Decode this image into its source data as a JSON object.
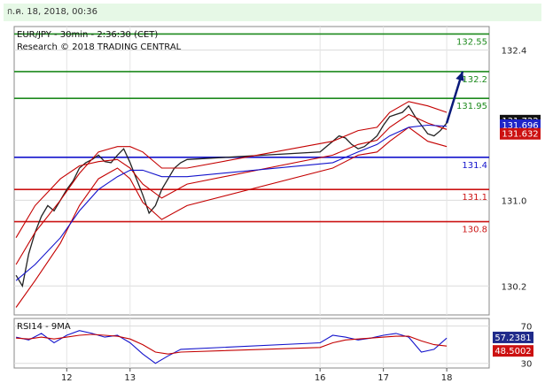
{
  "header": {
    "datetime": "ก.ค. 18, 2018, 00:36"
  },
  "chart_data": {
    "type": "line",
    "instrument": "EUR/JPY",
    "title": "EUR/JPY - 30min - 2:36:30 (CET)",
    "subtitle": "Research © 2018 TRADING CENTRAL",
    "ylim": [
      129.93,
      132.62
    ],
    "y_ticks": [
      "132.4",
      "131.0",
      "130.2"
    ],
    "y_tick_values": [
      132.4,
      131.0,
      130.2
    ],
    "x_ticks": [
      "12",
      "13",
      "16",
      "17",
      "18"
    ],
    "x_tick_positions": [
      12,
      13,
      16,
      17,
      18
    ],
    "xlim": [
      11.17,
      18.67
    ],
    "price_tags": [
      {
        "label": "131.722",
        "value": 131.722,
        "bg": "#111111"
      },
      {
        "label": "131.696",
        "value": 131.696,
        "bg": "#1f24c8"
      },
      {
        "label": "131.632",
        "value": 131.632,
        "bg": "#cc1111"
      }
    ],
    "levels": [
      {
        "label": "132.55",
        "value": 132.55,
        "color": "#1d8a1d"
      },
      {
        "label": "132.2",
        "value": 132.2,
        "color": "#1d8a1d"
      },
      {
        "label": "131.95",
        "value": 131.95,
        "color": "#1d8a1d"
      },
      {
        "label": "131.4",
        "value": 131.4,
        "color": "#1414cc"
      },
      {
        "label": "131.1",
        "value": 131.1,
        "color": "#cc1414"
      },
      {
        "label": "130.8",
        "value": 130.8,
        "color": "#cc1414"
      }
    ],
    "series": [
      {
        "name": "EUR/JPY",
        "color": "#222222",
        "x": [
          11.2,
          11.3,
          11.4,
          11.5,
          11.6,
          11.7,
          11.8,
          11.9,
          12.0,
          12.1,
          12.2,
          12.3,
          12.4,
          12.5,
          12.6,
          12.7,
          12.8,
          12.9,
          13.0,
          13.1,
          13.2,
          13.3,
          13.4,
          13.5,
          13.6,
          13.7,
          13.8,
          13.9,
          16.0,
          16.1,
          16.2,
          16.3,
          16.4,
          16.5,
          16.6,
          16.7,
          16.8,
          16.9,
          17.0,
          17.1,
          17.2,
          17.3,
          17.4,
          17.5,
          17.6,
          17.7,
          17.8,
          17.9,
          18.0
        ],
        "values": [
          130.3,
          130.2,
          130.5,
          130.7,
          130.85,
          130.95,
          130.9,
          131.0,
          131.1,
          131.18,
          131.3,
          131.35,
          131.38,
          131.42,
          131.36,
          131.35,
          131.42,
          131.48,
          131.35,
          131.2,
          131.05,
          130.88,
          130.95,
          131.1,
          131.2,
          131.3,
          131.35,
          131.38,
          131.45,
          131.5,
          131.55,
          131.6,
          131.58,
          131.52,
          131.48,
          131.5,
          131.55,
          131.6,
          131.7,
          131.78,
          131.8,
          131.82,
          131.88,
          131.78,
          131.7,
          131.62,
          131.6,
          131.65,
          131.72
        ]
      },
      {
        "name": "",
        "color": "#c40000",
        "x": [
          11.2,
          11.5,
          11.9,
          12.2,
          12.5,
          12.8,
          13.0,
          13.2,
          13.5,
          13.9,
          16.2,
          16.6,
          16.9,
          17.1,
          17.4,
          17.7,
          18.0
        ],
        "values": [
          130.65,
          130.95,
          131.2,
          131.32,
          131.36,
          131.38,
          131.3,
          131.15,
          131.02,
          131.15,
          131.42,
          131.52,
          131.56,
          131.68,
          131.8,
          131.72,
          131.66
        ]
      },
      {
        "name": "",
        "color": "#c40000",
        "x": [
          11.2,
          11.5,
          11.9,
          12.2,
          12.5,
          12.8,
          13.0,
          13.2,
          13.5,
          13.9,
          16.2,
          16.6,
          16.9,
          17.1,
          17.4,
          17.7,
          18.0
        ],
        "values": [
          130.0,
          130.25,
          130.6,
          130.95,
          131.2,
          131.3,
          131.2,
          130.98,
          130.82,
          130.95,
          131.3,
          131.42,
          131.45,
          131.55,
          131.68,
          131.55,
          131.5
        ]
      },
      {
        "name": "",
        "color": "#c40000",
        "x": [
          11.2,
          11.5,
          11.9,
          12.2,
          12.5,
          12.8,
          13.0,
          13.2,
          13.5,
          13.9,
          16.2,
          16.6,
          16.9,
          17.1,
          17.4,
          17.7,
          18.0
        ],
        "values": [
          130.4,
          130.7,
          131.0,
          131.25,
          131.45,
          131.5,
          131.5,
          131.45,
          131.3,
          131.3,
          131.55,
          131.65,
          131.68,
          131.82,
          131.92,
          131.88,
          131.82
        ]
      },
      {
        "name": "",
        "color": "#1414cc",
        "x": [
          11.2,
          11.5,
          11.9,
          12.2,
          12.5,
          12.8,
          13.0,
          13.2,
          13.5,
          13.9,
          16.2,
          16.6,
          16.9,
          17.1,
          17.4,
          17.7,
          18.0
        ],
        "values": [
          130.25,
          130.4,
          130.65,
          130.9,
          131.1,
          131.22,
          131.28,
          131.28,
          131.22,
          131.22,
          131.35,
          131.45,
          131.52,
          131.6,
          131.68,
          131.7,
          131.69
        ]
      }
    ],
    "arrow": {
      "from": [
        18.0,
        131.72
      ],
      "to": [
        18.25,
        132.2
      ],
      "color": "#0a1a7a"
    },
    "rsi": {
      "title": "RSI14 - 9MA",
      "ylim": [
        25,
        78
      ],
      "y_ticks": [
        "70",
        "30"
      ],
      "y_tick_values": [
        70,
        30
      ],
      "tags": [
        {
          "label": "57.2381",
          "value": 57.2381,
          "bg": "#1f2a8a"
        },
        {
          "label": "48.5002",
          "value": 48.5002,
          "bg": "#cc1111"
        }
      ],
      "series": [
        {
          "name": "RSI14",
          "color": "#1414cc",
          "x": [
            11.2,
            11.4,
            11.6,
            11.8,
            12.0,
            12.2,
            12.4,
            12.6,
            12.8,
            13.0,
            13.2,
            13.4,
            13.6,
            13.8,
            16.0,
            16.2,
            16.4,
            16.6,
            16.8,
            17.0,
            17.2,
            17.4,
            17.6,
            17.8,
            18.0
          ],
          "values": [
            58,
            55,
            62,
            52,
            60,
            65,
            62,
            58,
            60,
            52,
            40,
            30,
            38,
            45,
            52,
            60,
            58,
            55,
            57,
            60,
            62,
            58,
            42,
            45,
            57
          ]
        },
        {
          "name": "9MA",
          "color": "#c40000",
          "x": [
            11.2,
            11.4,
            11.6,
            11.8,
            12.0,
            12.2,
            12.4,
            12.6,
            12.8,
            13.0,
            13.2,
            13.4,
            13.6,
            13.8,
            16.0,
            16.2,
            16.4,
            16.6,
            16.8,
            17.0,
            17.2,
            17.4,
            17.6,
            17.8,
            18.0
          ],
          "values": [
            57,
            56,
            58,
            56,
            58,
            60,
            61,
            60,
            59,
            56,
            50,
            42,
            40,
            42,
            47,
            52,
            55,
            56,
            57,
            58,
            59,
            59,
            54,
            50,
            48.5
          ]
        }
      ]
    }
  }
}
